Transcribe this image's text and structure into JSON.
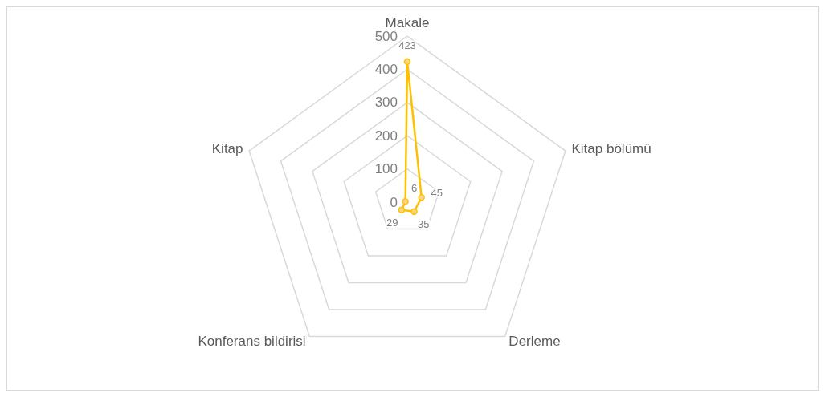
{
  "chart_data": {
    "type": "radar",
    "categories": [
      "Makale",
      "Kitap bölümü",
      "Derleme",
      "Konferans bildirisi",
      "Kitap"
    ],
    "series": [
      {
        "color": "#ffc000",
        "values": [
          423,
          45,
          35,
          29,
          6
        ]
      }
    ],
    "ylim": [
      0,
      500
    ],
    "yticks": [
      0,
      100,
      200,
      300,
      400,
      500
    ],
    "grid": true,
    "marker": "circle",
    "data_labels": true
  }
}
